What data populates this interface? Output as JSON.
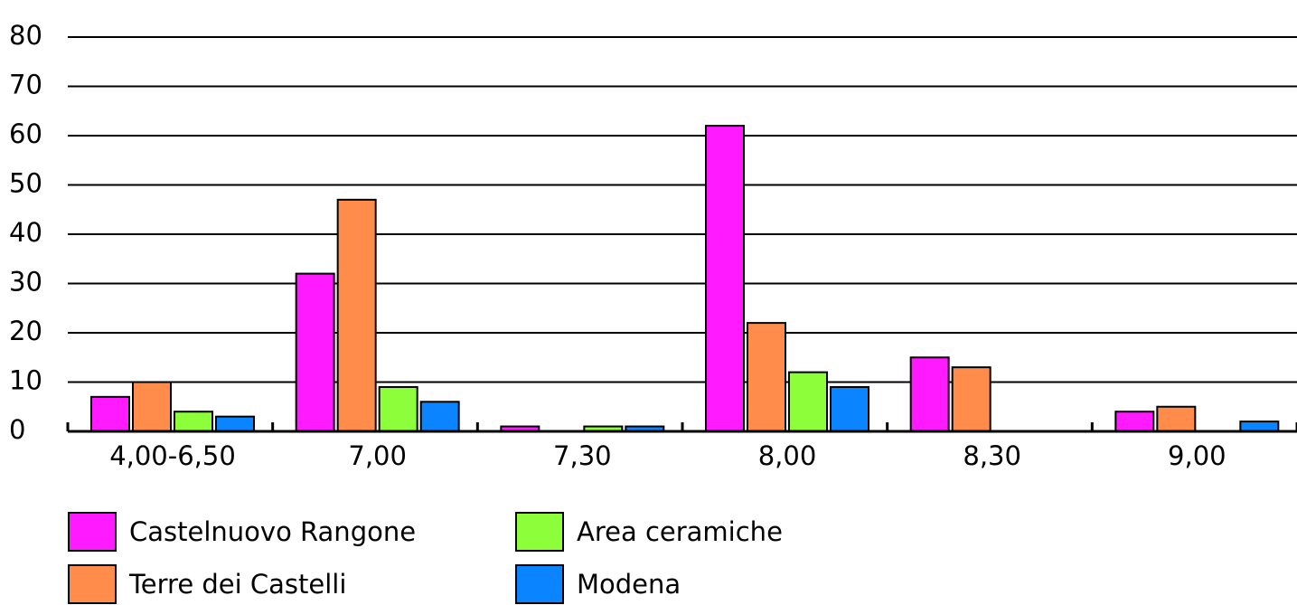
{
  "chart_data": {
    "type": "bar",
    "categories": [
      "4,00-6,50",
      "7,00",
      "7,30",
      "8,00",
      "8,30",
      "9,00"
    ],
    "series": [
      {
        "name": "Castelnuovo Rangone",
        "color": "#ff1aff",
        "values": [
          7,
          32,
          1,
          62,
          15,
          4
        ]
      },
      {
        "name": "Terre dei Castelli",
        "color": "#ff8c4a",
        "values": [
          10,
          47,
          0,
          22,
          13,
          5
        ]
      },
      {
        "name": "Area ceramiche",
        "color": "#8cff3a",
        "values": [
          4,
          9,
          1,
          12,
          0,
          0
        ]
      },
      {
        "name": "Modena",
        "color": "#0a85ff",
        "values": [
          3,
          6,
          1,
          9,
          0,
          2
        ]
      }
    ],
    "y_ticks": [
      "0",
      "10",
      "20",
      "30",
      "40",
      "50",
      "60",
      "70",
      "80"
    ],
    "ylim": [
      0,
      80
    ],
    "grid": true,
    "legend_position": "bottom"
  }
}
